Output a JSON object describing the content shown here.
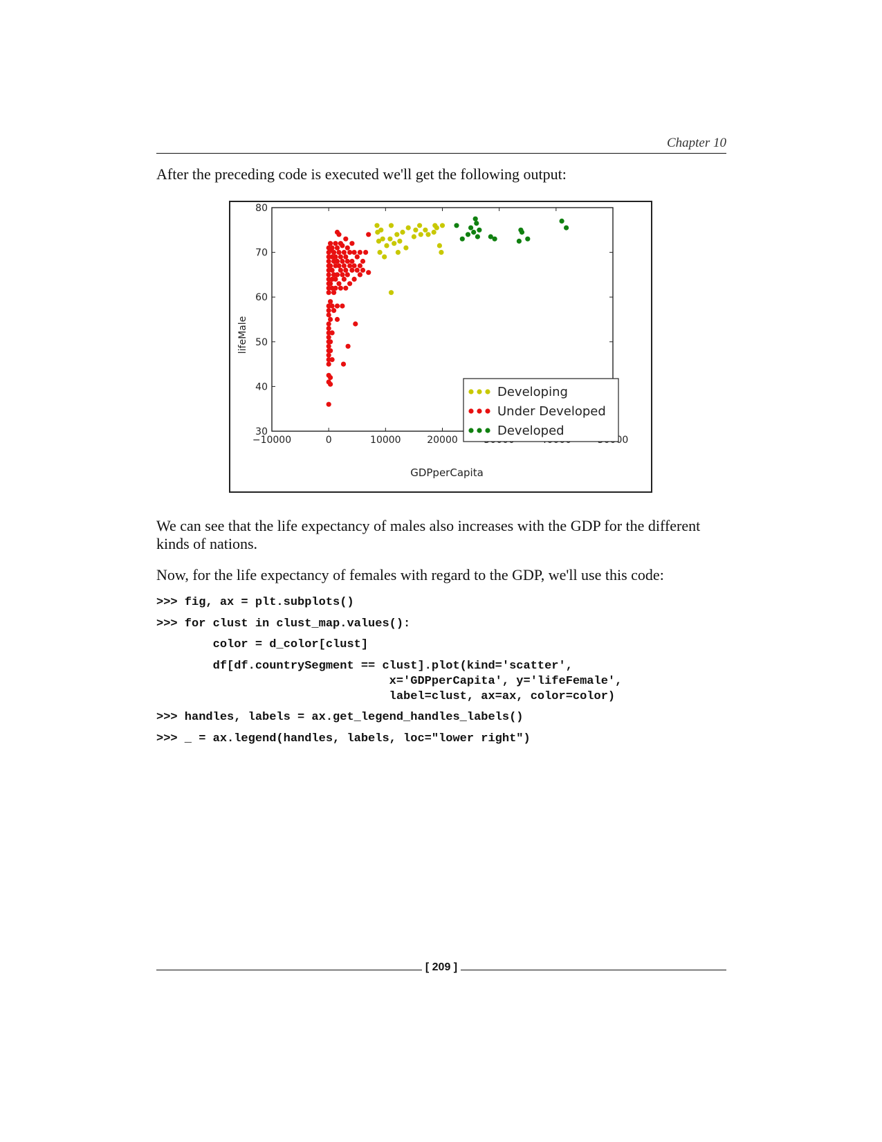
{
  "header": {
    "chapter": "Chapter 10"
  },
  "paragraphs": {
    "intro": "After the preceding code is executed we'll get the following output:",
    "observation": "We can see that the life expectancy of males also increases with the GDP for the different kinds of nations.",
    "lead_in": "Now, for the life expectancy of females with regard to the GDP, we'll use this code:"
  },
  "code": {
    "lines": [
      ">>> fig, ax = plt.subplots()",
      ">>> for clust in clust_map.values():",
      "        color = d_color[clust]",
      "        df[df.countrySegment == clust].plot(kind='scatter',",
      "                                 x='GDPperCapita', y='lifeFemale',",
      "                                 label=clust, ax=ax, color=color)",
      ">>> handles, labels = ax.get_legend_handles_labels()",
      ">>> _ = ax.legend(handles, labels, loc=\"lower right\")"
    ]
  },
  "footer": {
    "page": "[ 209 ]"
  },
  "chart_data": {
    "type": "scatter",
    "xlabel": "GDPperCapita",
    "ylabel": "lifeMale",
    "xlim": [
      -10000,
      50000
    ],
    "ylim": [
      30,
      80
    ],
    "xticks": [
      "−10000",
      "0",
      "10000",
      "20000",
      "30000",
      "40000",
      "50000"
    ],
    "yticks": [
      "30",
      "40",
      "50",
      "60",
      "70",
      "80"
    ],
    "grid": false,
    "legend_placement": "lower right",
    "series": [
      {
        "name": "Developing",
        "color": "#c8c800",
        "points": [
          [
            8500,
            76
          ],
          [
            8600,
            74.5
          ],
          [
            8800,
            72.5
          ],
          [
            9000,
            70
          ],
          [
            9200,
            75
          ],
          [
            9500,
            73
          ],
          [
            9800,
            69
          ],
          [
            10200,
            71.5
          ],
          [
            11000,
            76
          ],
          [
            11500,
            72
          ],
          [
            12000,
            74
          ],
          [
            12200,
            70
          ],
          [
            13000,
            74.5
          ],
          [
            13600,
            71
          ],
          [
            14000,
            75.5
          ],
          [
            15000,
            73.5
          ],
          [
            15300,
            75
          ],
          [
            16000,
            76
          ],
          [
            16200,
            74
          ],
          [
            17000,
            75
          ],
          [
            17500,
            74
          ],
          [
            18500,
            74.5
          ],
          [
            18700,
            76
          ],
          [
            19000,
            75.5
          ],
          [
            19500,
            71.5
          ],
          [
            19800,
            70
          ],
          [
            20000,
            76
          ],
          [
            11000,
            61
          ],
          [
            10800,
            73
          ],
          [
            12500,
            72.5
          ]
        ]
      },
      {
        "name": "Under Developed",
        "color": "#e81010",
        "points": [
          [
            0,
            71
          ],
          [
            0,
            70
          ],
          [
            0,
            69
          ],
          [
            0,
            68
          ],
          [
            0,
            67
          ],
          [
            0,
            66
          ],
          [
            0,
            65
          ],
          [
            0,
            64
          ],
          [
            0,
            63
          ],
          [
            0,
            62
          ],
          [
            0,
            61
          ],
          [
            0,
            58
          ],
          [
            0,
            57
          ],
          [
            0,
            56
          ],
          [
            0,
            54
          ],
          [
            0,
            53
          ],
          [
            0,
            52
          ],
          [
            0,
            51
          ],
          [
            0,
            50
          ],
          [
            0,
            49
          ],
          [
            0,
            48
          ],
          [
            0,
            47
          ],
          [
            0,
            46
          ],
          [
            0,
            45
          ],
          [
            0,
            42.5
          ],
          [
            0,
            41
          ],
          [
            0,
            36
          ],
          [
            300,
            72
          ],
          [
            300,
            70.5
          ],
          [
            300,
            67
          ],
          [
            300,
            63
          ],
          [
            300,
            59
          ],
          [
            300,
            55
          ],
          [
            300,
            50
          ],
          [
            300,
            48
          ],
          [
            300,
            40.5
          ],
          [
            300,
            42
          ],
          [
            600,
            71
          ],
          [
            600,
            69
          ],
          [
            600,
            66
          ],
          [
            600,
            64
          ],
          [
            600,
            62
          ],
          [
            600,
            58
          ],
          [
            600,
            52
          ],
          [
            600,
            46
          ],
          [
            900,
            70
          ],
          [
            900,
            68
          ],
          [
            900,
            65
          ],
          [
            900,
            61
          ],
          [
            900,
            57
          ],
          [
            1200,
            72
          ],
          [
            1200,
            69
          ],
          [
            1200,
            67
          ],
          [
            1200,
            64
          ],
          [
            1200,
            62
          ],
          [
            1500,
            74.5
          ],
          [
            1500,
            71
          ],
          [
            1500,
            68
          ],
          [
            1500,
            65
          ],
          [
            1500,
            58
          ],
          [
            1500,
            55
          ],
          [
            1800,
            74
          ],
          [
            1800,
            70
          ],
          [
            1800,
            67
          ],
          [
            1800,
            63
          ],
          [
            2100,
            72
          ],
          [
            2100,
            69
          ],
          [
            2100,
            66
          ],
          [
            2100,
            62
          ],
          [
            2400,
            71.5
          ],
          [
            2400,
            68
          ],
          [
            2400,
            65
          ],
          [
            2400,
            58
          ],
          [
            2700,
            70
          ],
          [
            2700,
            67
          ],
          [
            2700,
            64
          ],
          [
            3000,
            73
          ],
          [
            3000,
            69
          ],
          [
            3000,
            66
          ],
          [
            3000,
            62
          ],
          [
            2600,
            45
          ],
          [
            3300,
            71
          ],
          [
            3300,
            68
          ],
          [
            3300,
            65
          ],
          [
            3700,
            70
          ],
          [
            3700,
            67
          ],
          [
            3700,
            63
          ],
          [
            3400,
            49
          ],
          [
            4100,
            72
          ],
          [
            4100,
            68
          ],
          [
            4100,
            66
          ],
          [
            4500,
            70
          ],
          [
            4500,
            67
          ],
          [
            4500,
            64
          ],
          [
            4700,
            54
          ],
          [
            5000,
            69
          ],
          [
            5000,
            66
          ],
          [
            5500,
            70
          ],
          [
            5500,
            67
          ],
          [
            5500,
            65
          ],
          [
            6000,
            68
          ],
          [
            6000,
            66
          ],
          [
            6500,
            70
          ],
          [
            7000,
            74
          ],
          [
            7000,
            65.5
          ]
        ]
      },
      {
        "name": "Developed",
        "color": "#108010",
        "points": [
          [
            22500,
            76
          ],
          [
            23500,
            73
          ],
          [
            24500,
            74
          ],
          [
            25000,
            75.5
          ],
          [
            25500,
            74.5
          ],
          [
            25800,
            77.5
          ],
          [
            26000,
            76.5
          ],
          [
            26200,
            73.5
          ],
          [
            26500,
            75
          ],
          [
            28500,
            73.5
          ],
          [
            29200,
            73
          ],
          [
            33500,
            72.5
          ],
          [
            33800,
            75
          ],
          [
            34000,
            74.5
          ],
          [
            35000,
            73
          ],
          [
            41000,
            77
          ],
          [
            41800,
            75.5
          ]
        ]
      }
    ]
  }
}
